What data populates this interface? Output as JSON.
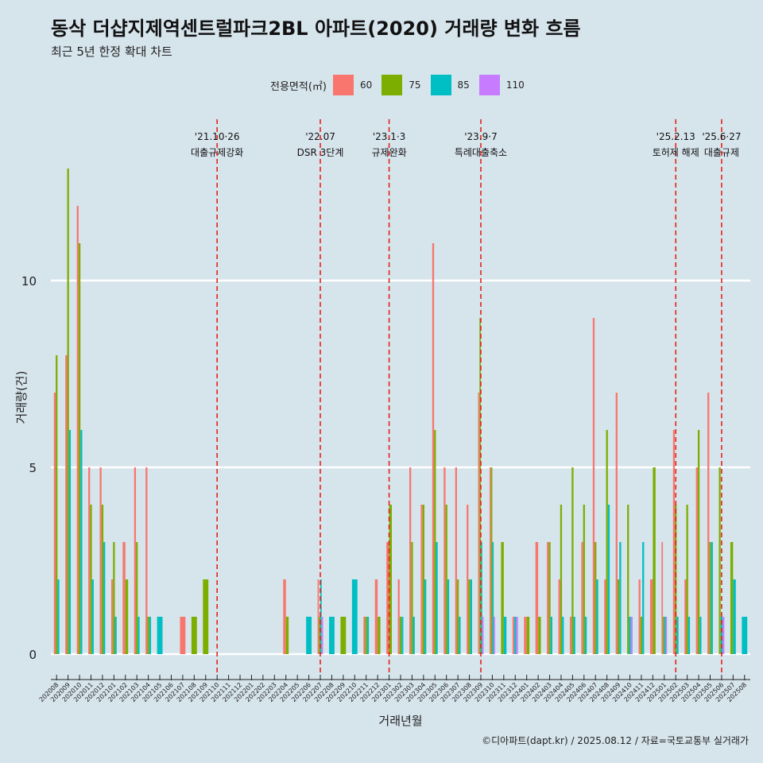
{
  "header": {
    "title": "동삭 더샵지제역센트럴파크2BL 아파트(2020) 거래량 변화 흐름",
    "subtitle": "최근 5년 한정 확대 차트"
  },
  "legend": {
    "title": "전용면적(㎡)",
    "items": [
      {
        "label": "60",
        "color": "#f8766d"
      },
      {
        "label": "75",
        "color": "#7cae00"
      },
      {
        "label": "85",
        "color": "#00bfc4"
      },
      {
        "label": "110",
        "color": "#c77cff"
      }
    ]
  },
  "caption": "©디아파트(dapt.kr) / 2025.08.12 / 자료=국토교통부 실거래가",
  "chart_data": {
    "type": "bar",
    "xlabel": "거래년월",
    "ylabel": "거래량(건)",
    "ylim": [
      0,
      14
    ],
    "yticks": [
      0,
      5,
      10
    ],
    "categories": [
      "202008",
      "202009",
      "202010",
      "202011",
      "202012",
      "202101",
      "202102",
      "202103",
      "202104",
      "202105",
      "202106",
      "202107",
      "202108",
      "202109",
      "202110",
      "202111",
      "202112",
      "202201",
      "202202",
      "202203",
      "202204",
      "202205",
      "202206",
      "202207",
      "202208",
      "202209",
      "202210",
      "202211",
      "202212",
      "202301",
      "202302",
      "202303",
      "202304",
      "202305",
      "202306",
      "202307",
      "202308",
      "202309",
      "202310",
      "202311",
      "202312",
      "202401",
      "202402",
      "202403",
      "202404",
      "202405",
      "202406",
      "202407",
      "202408",
      "202409",
      "202410",
      "202411",
      "202412",
      "202501",
      "202502",
      "202503",
      "202504",
      "202505",
      "202506",
      "202507",
      "202508"
    ],
    "series": [
      {
        "name": "60",
        "color": "#f8766d",
        "values": [
          7,
          8,
          12,
          5,
          5,
          2,
          3,
          5,
          5,
          0,
          0,
          1,
          0,
          0,
          0,
          0,
          0,
          0,
          0,
          0,
          2,
          0,
          0,
          2,
          0,
          0,
          0,
          1,
          2,
          3,
          2,
          5,
          4,
          11,
          5,
          5,
          4,
          7,
          5,
          0,
          1,
          1,
          3,
          3,
          2,
          1,
          3,
          9,
          2,
          7,
          0,
          2,
          2,
          3,
          6,
          2,
          5,
          7,
          0,
          0,
          0
        ]
      },
      {
        "name": "75",
        "color": "#7cae00",
        "values": [
          8,
          13,
          11,
          4,
          4,
          3,
          2,
          3,
          1,
          0,
          0,
          0,
          1,
          2,
          0,
          0,
          0,
          0,
          0,
          0,
          1,
          0,
          0,
          1,
          0,
          1,
          0,
          1,
          1,
          4,
          1,
          3,
          4,
          6,
          4,
          2,
          2,
          9,
          5,
          3,
          0,
          1,
          1,
          3,
          4,
          5,
          4,
          3,
          6,
          2,
          4,
          1,
          5,
          1,
          4,
          4,
          6,
          3,
          5,
          3,
          0
        ]
      },
      {
        "name": "85",
        "color": "#00bfc4",
        "values": [
          2,
          6,
          6,
          2,
          3,
          1,
          0,
          1,
          1,
          1,
          0,
          0,
          0,
          0,
          0,
          0,
          0,
          0,
          0,
          0,
          0,
          0,
          1,
          2,
          1,
          0,
          2,
          1,
          0,
          0,
          1,
          1,
          2,
          3,
          2,
          1,
          2,
          3,
          3,
          1,
          1,
          0,
          0,
          1,
          1,
          1,
          1,
          2,
          4,
          3,
          1,
          3,
          0,
          1,
          1,
          1,
          1,
          3,
          1,
          2,
          1
        ]
      },
      {
        "name": "110",
        "color": "#c77cff",
        "values": [
          0,
          0,
          0,
          0,
          0,
          0,
          0,
          0,
          0,
          0,
          0,
          0,
          0,
          0,
          0,
          0,
          0,
          0,
          0,
          0,
          0,
          0,
          0,
          1,
          0,
          0,
          0,
          0,
          0,
          0,
          0,
          0,
          0,
          0,
          0,
          0,
          0,
          1,
          1,
          0,
          1,
          0,
          0,
          0,
          0,
          0,
          0,
          0,
          0,
          0,
          1,
          0,
          0,
          1,
          0,
          0,
          0,
          0,
          1,
          0,
          0
        ]
      }
    ],
    "annotations": [
      {
        "category": "202110",
        "date": "'21.10·26",
        "label": "대출규제강화"
      },
      {
        "category": "202207",
        "date": "'22.07",
        "label": "DSR 3단계"
      },
      {
        "category": "202301",
        "date": "'23.1·3",
        "label": "규제완화"
      },
      {
        "category": "202309",
        "date": "'23.9·7",
        "label": "특례대출축소"
      },
      {
        "category": "202502",
        "date": "'25.2.13",
        "label": "토허제 해제"
      },
      {
        "category": "202506",
        "date": "'25.6·27",
        "label": "대출규제"
      }
    ],
    "grid": true,
    "legend_position": "top"
  }
}
